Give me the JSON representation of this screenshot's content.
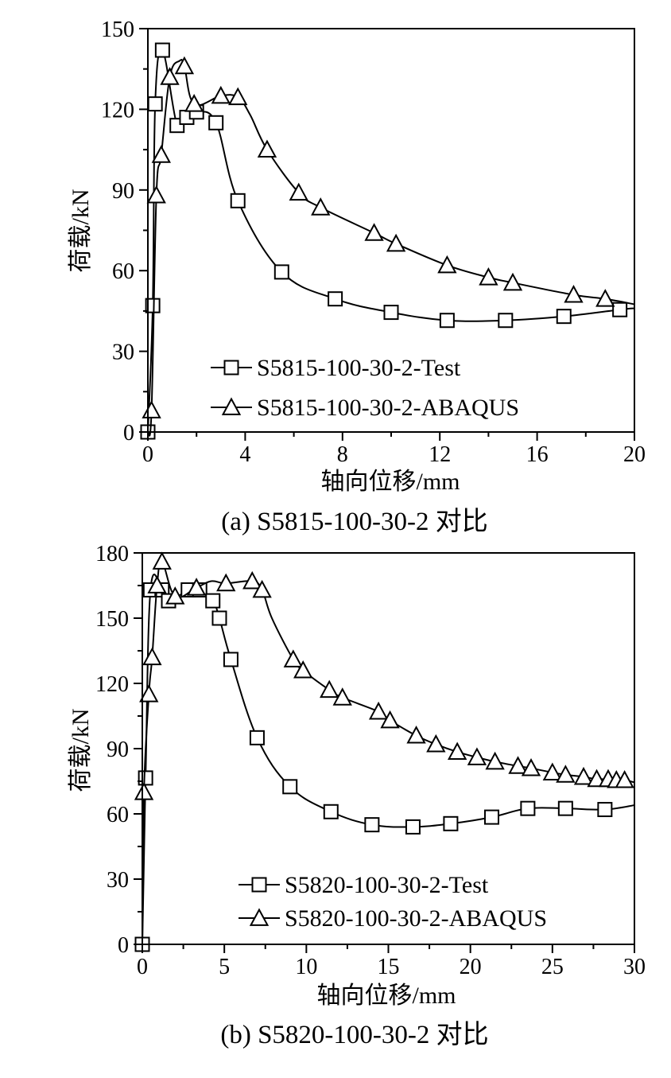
{
  "chart_data": [
    {
      "type": "line",
      "caption": "(a) S5815-100-30-2 对比",
      "xlabel": "轴向位移/mm",
      "ylabel": "荷载/kN",
      "xlim": [
        0,
        20
      ],
      "ylim": [
        0,
        150
      ],
      "xticks": [
        0,
        4,
        8,
        12,
        16,
        20
      ],
      "yticks": [
        0,
        30,
        60,
        90,
        120,
        150
      ],
      "legend_position": "bottom-left",
      "series": [
        {
          "name": "S5815-100-30-2-Test",
          "marker": "square",
          "x": [
            0,
            0.2,
            0.3,
            0.6,
            1.2,
            1.6,
            2.0,
            2.8,
            3.7,
            5.5,
            7.7,
            10.0,
            12.3,
            14.7,
            17.1,
            19.4,
            20.0
          ],
          "y": [
            0,
            47,
            122,
            142,
            114,
            117,
            119,
            115,
            86,
            59.5,
            49.5,
            44.5,
            41.5,
            41.5,
            43,
            45.5,
            46
          ],
          "markers": [
            [
              0,
              0
            ],
            [
              0.2,
              47
            ],
            [
              0.3,
              122
            ],
            [
              0.6,
              142
            ],
            [
              1.2,
              114
            ],
            [
              1.6,
              117
            ],
            [
              2.0,
              119
            ],
            [
              2.8,
              115
            ],
            [
              3.7,
              86
            ],
            [
              5.5,
              59.5
            ],
            [
              7.7,
              49.5
            ],
            [
              10.0,
              44.5
            ],
            [
              12.3,
              41.5
            ],
            [
              14.7,
              41.5
            ],
            [
              17.1,
              43
            ],
            [
              19.4,
              45.5
            ]
          ]
        },
        {
          "name": "S5815-100-30-2-ABAQUS",
          "marker": "triangle",
          "x": [
            0,
            0.15,
            0.35,
            0.55,
            0.9,
            1.3,
            1.5,
            1.9,
            3.0,
            3.7,
            4.2,
            4.9,
            6.2,
            7.1,
            9.3,
            10.2,
            12.3,
            14.0,
            15.0,
            17.5,
            18.8,
            20.0
          ],
          "y": [
            0,
            8,
            88,
            103,
            132,
            138,
            136,
            122,
            125,
            124.5,
            118,
            105,
            89,
            83.5,
            74,
            70,
            62,
            57.5,
            55.5,
            51,
            49.5,
            47.5
          ],
          "markers": [
            [
              0.15,
              8
            ],
            [
              0.35,
              88
            ],
            [
              0.55,
              103
            ],
            [
              0.9,
              132
            ],
            [
              1.5,
              136
            ],
            [
              1.9,
              122
            ],
            [
              3.0,
              125
            ],
            [
              3.7,
              124.5
            ],
            [
              4.9,
              105
            ],
            [
              6.2,
              89
            ],
            [
              7.1,
              83.5
            ],
            [
              9.3,
              74
            ],
            [
              10.2,
              70
            ],
            [
              12.3,
              62
            ],
            [
              14.0,
              57.5
            ],
            [
              15.0,
              55.5
            ],
            [
              17.5,
              51
            ],
            [
              18.8,
              49.5
            ]
          ]
        }
      ]
    },
    {
      "type": "line",
      "caption": "(b) S5820-100-30-2 对比",
      "xlabel": "轴向位移/mm",
      "ylabel": "荷载/kN",
      "xlim": [
        0,
        30
      ],
      "ylim": [
        0,
        180
      ],
      "xticks": [
        0,
        5,
        10,
        15,
        20,
        25,
        30
      ],
      "yticks": [
        0,
        30,
        60,
        90,
        120,
        150,
        180
      ],
      "legend_position": "bottom-left",
      "series": [
        {
          "name": "S5820-100-30-2-Test",
          "marker": "square",
          "x": [
            0,
            0.2,
            0.5,
            1.2,
            1.6,
            2.0,
            2.8,
            3.5,
            4.3,
            4.7,
            5.4,
            7.0,
            9.0,
            11.5,
            14.0,
            16.5,
            18.8,
            21.3,
            23.5,
            25.8,
            28.2,
            30.0
          ],
          "y": [
            0,
            76.5,
            163,
            163,
            158,
            159,
            163,
            163,
            158,
            150,
            131,
            95,
            72.5,
            61,
            55,
            54,
            55.5,
            58.5,
            62.5,
            62.5,
            62,
            64
          ],
          "markers": [
            [
              0,
              0
            ],
            [
              0.2,
              76.5
            ],
            [
              0.5,
              163
            ],
            [
              1.2,
              163
            ],
            [
              1.6,
              158
            ],
            [
              2.8,
              163
            ],
            [
              3.5,
              163
            ],
            [
              4.3,
              158
            ],
            [
              4.7,
              150
            ],
            [
              5.4,
              131
            ],
            [
              7.0,
              95
            ],
            [
              9.0,
              72.5
            ],
            [
              11.5,
              61
            ],
            [
              14.0,
              55
            ],
            [
              16.5,
              54
            ],
            [
              18.8,
              55.5
            ],
            [
              21.3,
              58.5
            ],
            [
              23.5,
              62.5
            ],
            [
              25.8,
              62.5
            ],
            [
              28.2,
              62
            ]
          ]
        },
        {
          "name": "S5820-100-30-2-ABAQUS",
          "marker": "triangle",
          "x": [
            0,
            0.1,
            0.4,
            0.6,
            0.9,
            1.2,
            2.0,
            3.3,
            4.2,
            5.1,
            6.7,
            7.3,
            7.9,
            9.2,
            9.8,
            11.4,
            12.2,
            14.4,
            15.1,
            16.7,
            17.9,
            19.2,
            20.4,
            21.5,
            22.9,
            23.7,
            25.0,
            25.8,
            26.9,
            27.7,
            28.4,
            28.9,
            29.4,
            30.0
          ],
          "y": [
            0,
            70,
            115,
            132,
            165,
            176,
            160,
            164,
            167,
            166,
            167,
            163,
            150,
            131,
            126,
            117,
            113.5,
            107,
            103,
            96,
            92,
            88.5,
            86,
            84,
            82,
            81,
            79,
            78,
            77,
            76,
            76,
            75.5,
            75.5,
            74.5
          ],
          "markers": [
            [
              0.1,
              70
            ],
            [
              0.4,
              115
            ],
            [
              0.6,
              132
            ],
            [
              0.9,
              165
            ],
            [
              1.2,
              176
            ],
            [
              2.0,
              160
            ],
            [
              3.3,
              164
            ],
            [
              5.1,
              166
            ],
            [
              6.7,
              167
            ],
            [
              7.3,
              163
            ],
            [
              9.2,
              131
            ],
            [
              9.8,
              126
            ],
            [
              11.4,
              117
            ],
            [
              12.2,
              113.5
            ],
            [
              14.4,
              107
            ],
            [
              15.1,
              103
            ],
            [
              16.7,
              96
            ],
            [
              17.9,
              92
            ],
            [
              19.2,
              88.5
            ],
            [
              20.4,
              86
            ],
            [
              21.5,
              84
            ],
            [
              22.9,
              82
            ],
            [
              23.7,
              81
            ],
            [
              25.0,
              79
            ],
            [
              25.8,
              78
            ],
            [
              26.9,
              77
            ],
            [
              27.7,
              76
            ],
            [
              28.4,
              76
            ],
            [
              28.9,
              75.5
            ],
            [
              29.4,
              75.5
            ]
          ]
        }
      ]
    }
  ]
}
